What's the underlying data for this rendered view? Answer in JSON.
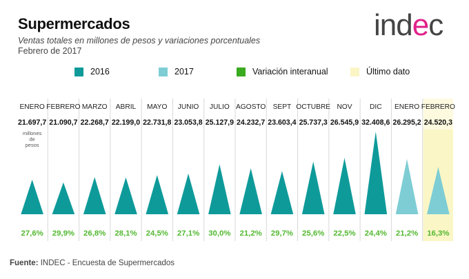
{
  "header": {
    "title": "Supermercados",
    "subtitle": "Ventas totales en millones de pesos y variaciones porcentuales",
    "period": "Febrero de 2017"
  },
  "logo": {
    "left": "ind",
    "accent": "e",
    "right": "c"
  },
  "legend": [
    {
      "label": "2016",
      "color": "#0f9a9a"
    },
    {
      "label": "2017",
      "color": "#7ecdd4"
    },
    {
      "label": "Variación interanual",
      "color": "#3aaa20"
    },
    {
      "label": "Último dato",
      "color": "#fbf5c6"
    }
  ],
  "footer": {
    "prefix": "Fuente:",
    "text": "INDEC - Encuesta de Supermercados"
  },
  "chart_data": {
    "type": "bar",
    "title": "Supermercados",
    "unit_label": [
      "millones",
      "de",
      "pesos"
    ],
    "categories": [
      "ENERO",
      "FEBRERO",
      "MARZO",
      "ABRIL",
      "MAYO",
      "JUNIO",
      "JULIO",
      "AGOSTO",
      "SEPT",
      "OCTUBRE",
      "NOV",
      "DIC",
      "ENERO",
      "FEBRERO"
    ],
    "value_labels": [
      "21.697,7",
      "21.090,7",
      "22.268,7",
      "22.199,0",
      "22.731,8",
      "23.053,8",
      "25.127,9",
      "24.232,7",
      "23.603,4",
      "25.737,3",
      "26.545,9",
      "32.408,6",
      "26.295,2",
      "24.520,3"
    ],
    "values": [
      21697.7,
      21090.7,
      22268.7,
      22199.0,
      22731.8,
      23053.8,
      25127.9,
      24232.7,
      23603.4,
      25737.3,
      26545.9,
      32408.6,
      26295.2,
      24520.3
    ],
    "years": [
      "2016",
      "2016",
      "2016",
      "2016",
      "2016",
      "2016",
      "2016",
      "2016",
      "2016",
      "2016",
      "2016",
      "2016",
      "2017",
      "2017"
    ],
    "variation_labels": [
      "27,6%",
      "29,9%",
      "26,8%",
      "28,1%",
      "24,5%",
      "27,1%",
      "30,0%",
      "21,2%",
      "29,7%",
      "25,6%",
      "22,5%",
      "24,4%",
      "21,2%",
      "16,3%"
    ],
    "variation_values": [
      27.6,
      29.9,
      26.8,
      28.1,
      24.5,
      27.1,
      30.0,
      21.2,
      29.7,
      25.6,
      22.5,
      24.4,
      21.2,
      16.3
    ],
    "highlight_index": 13,
    "series_colors": {
      "2016": "#0f9a9a",
      "2017": "#7ecdd4",
      "variation": "#52b830",
      "highlight": "#fbf5c6"
    }
  }
}
